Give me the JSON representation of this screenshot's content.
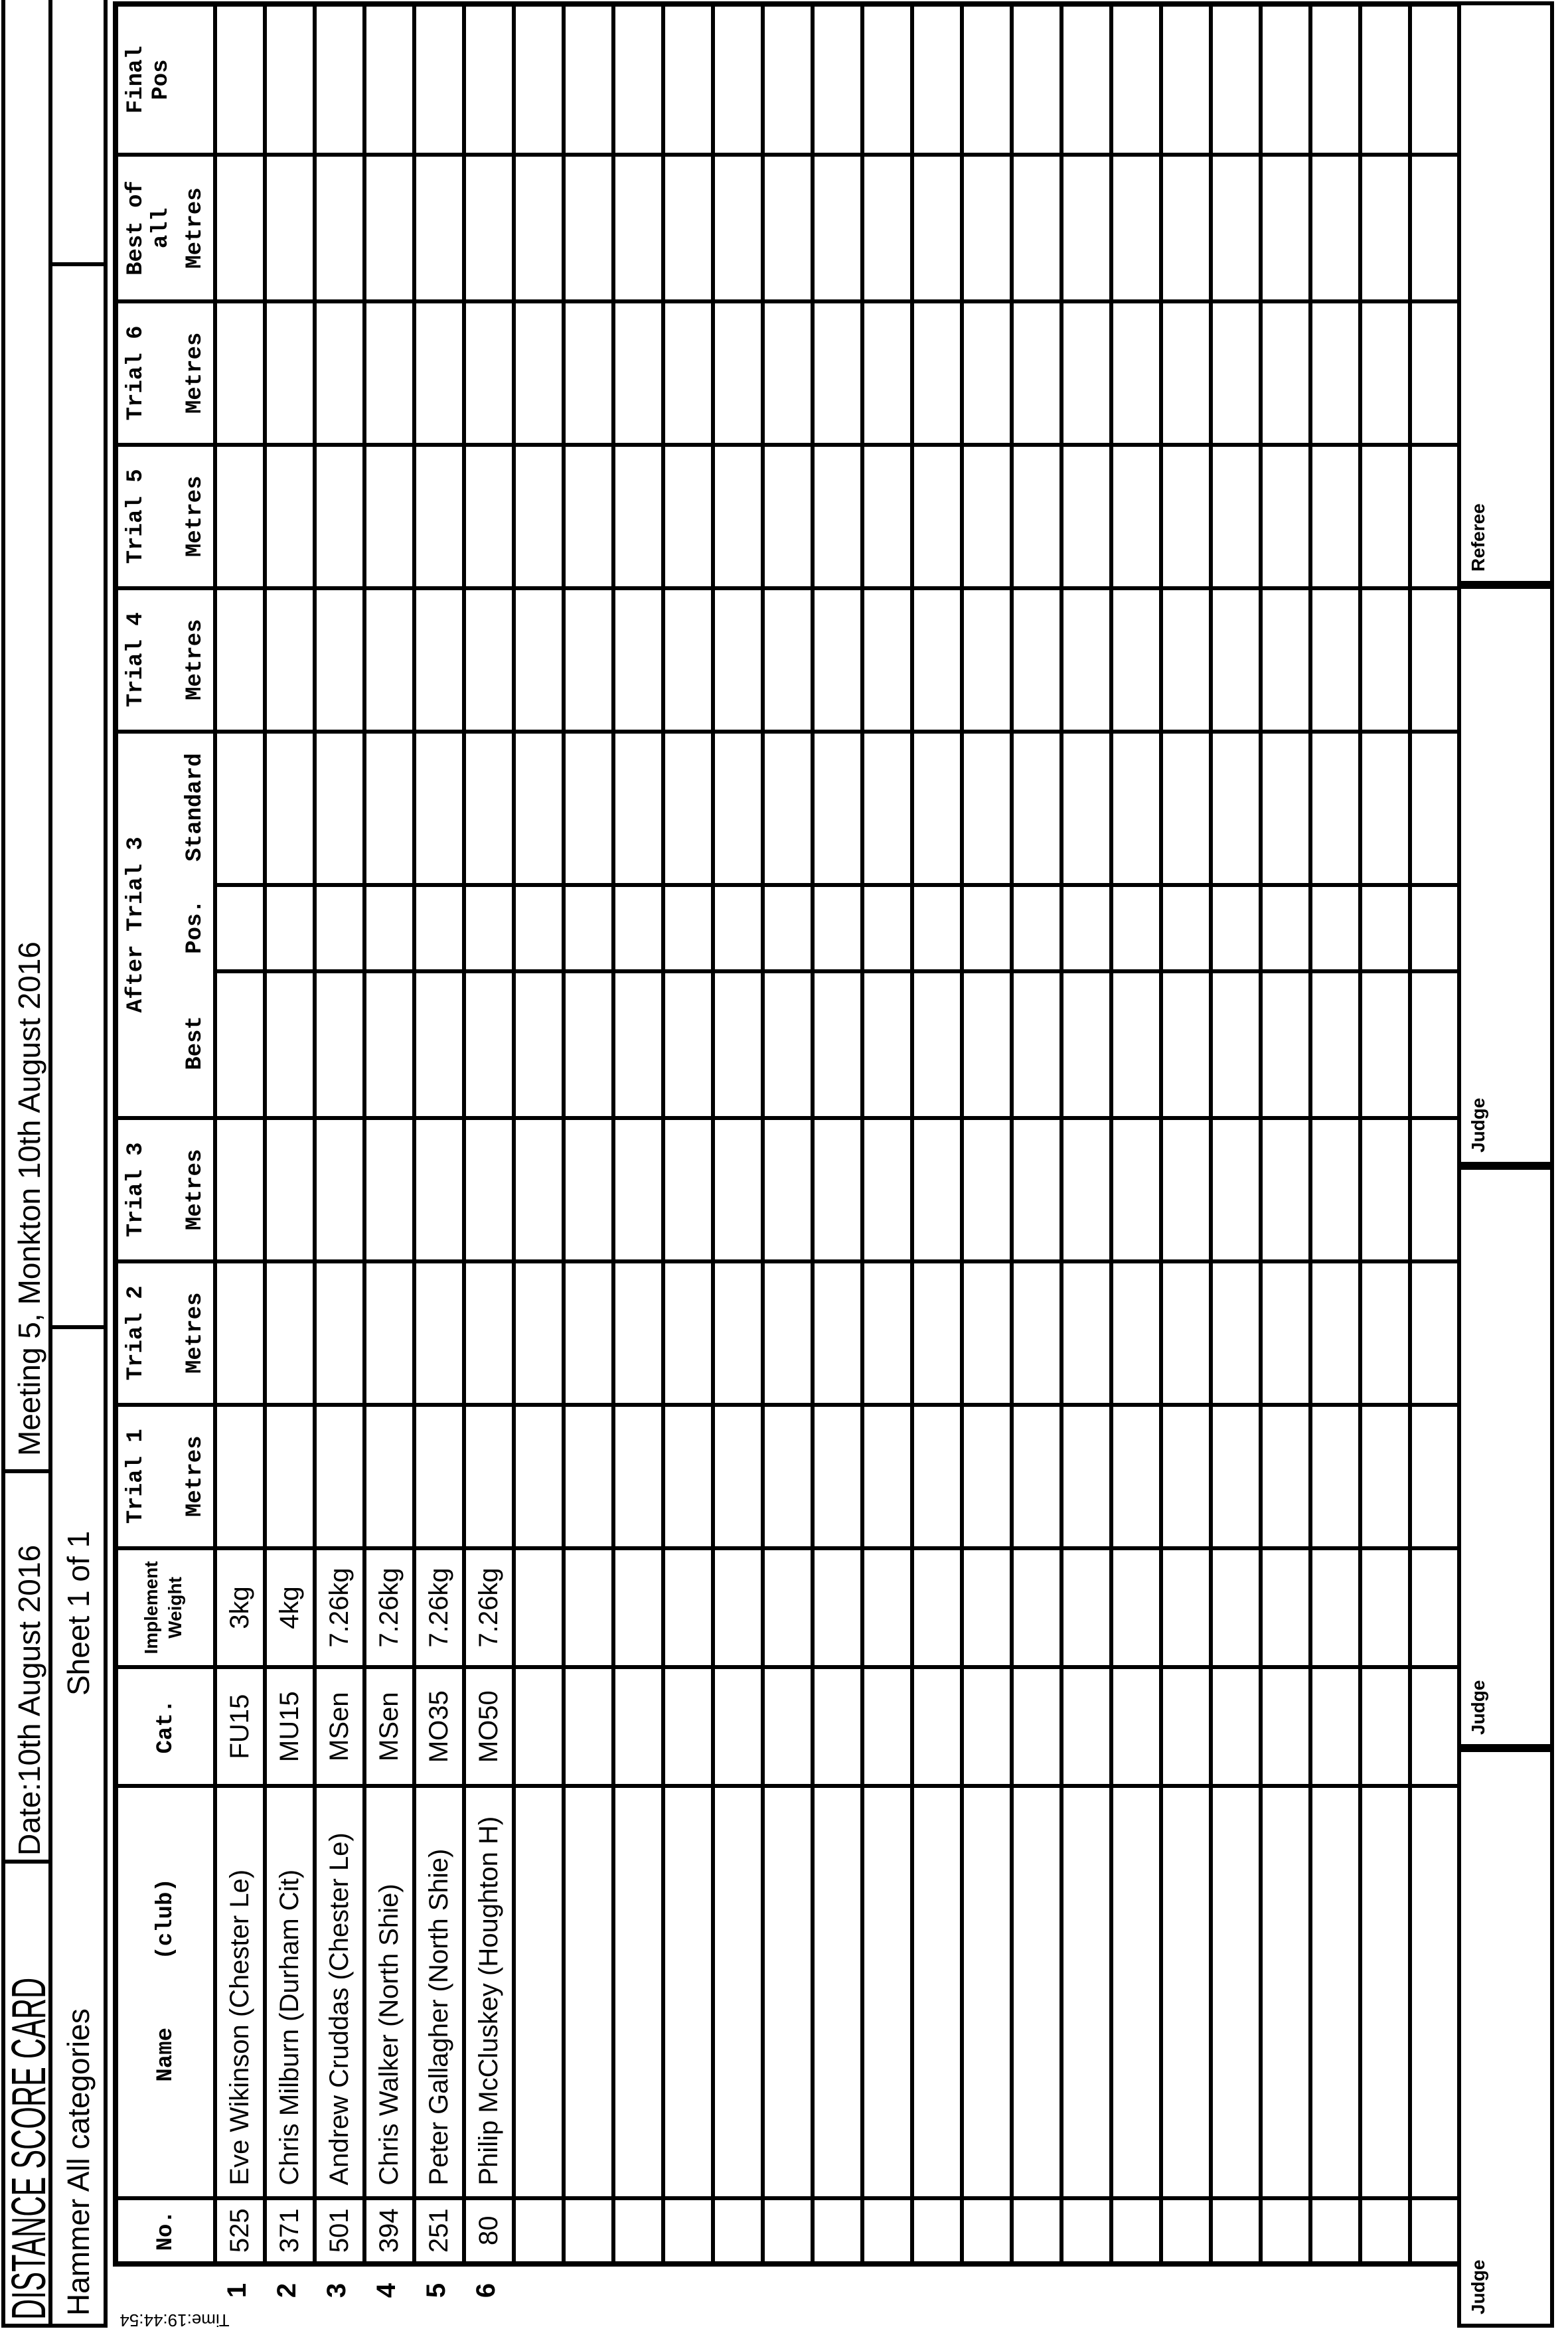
{
  "page": {
    "title": "DISTANCE SCORE CARD",
    "date": "Date:10th August 2016",
    "meeting": "Meeting 5, Monkton 10th August 2016",
    "event": "Hammer All categories",
    "sheet": "Sheet 1 of 1",
    "print_time": "Time:19:44:54"
  },
  "table": {
    "headers": {
      "no": "No.",
      "name": "Name",
      "club": "(club)",
      "cat": "Cat.",
      "implement_line1": "Implement",
      "implement_line2": "Weight",
      "metres": "Metres",
      "trial1": "Trial 1",
      "trial2": "Trial 2",
      "trial3": "Trial 3",
      "after_trial3": "After Trial 3",
      "best": "Best",
      "pos": "Pos.",
      "standard": "Standard",
      "trial4": "Trial 4",
      "trial5": "Trial 5",
      "trial6": "Trial 6",
      "best_of_all_line1": "Best of",
      "best_of_all_line2": "all",
      "final_line1": "Final",
      "final_line2": "Pos"
    },
    "athletes": [
      {
        "order": "1",
        "no": "525",
        "name": "Eve Wikinson (Chester Le)",
        "cat": "FU15",
        "weight": "3kg"
      },
      {
        "order": "2",
        "no": "371",
        "name": "Chris Milburn (Durham Cit)",
        "cat": "MU15",
        "weight": "4kg"
      },
      {
        "order": "3",
        "no": "501",
        "name": "Andrew Cruddas (Chester Le)",
        "cat": "MSen",
        "weight": "7.26kg"
      },
      {
        "order": "4",
        "no": "394",
        "name": "Chris Walker (North Shie)",
        "cat": "MSen",
        "weight": "7.26kg"
      },
      {
        "order": "5",
        "no": "251",
        "name": "Peter Gallagher (North Shie)",
        "cat": "MO35",
        "weight": "7.26kg"
      },
      {
        "order": "6",
        "no": "80",
        "name": "Philip McCluskey (Houghton H)",
        "cat": "MO50",
        "weight": "7.26kg"
      }
    ],
    "empty_rows": 19
  },
  "officials": [
    {
      "label": "Judge"
    },
    {
      "label": "Judge"
    },
    {
      "label": "Judge"
    },
    {
      "label": "Referee"
    }
  ],
  "colors": {
    "ink": "#000000",
    "paper": "#ffffff"
  }
}
